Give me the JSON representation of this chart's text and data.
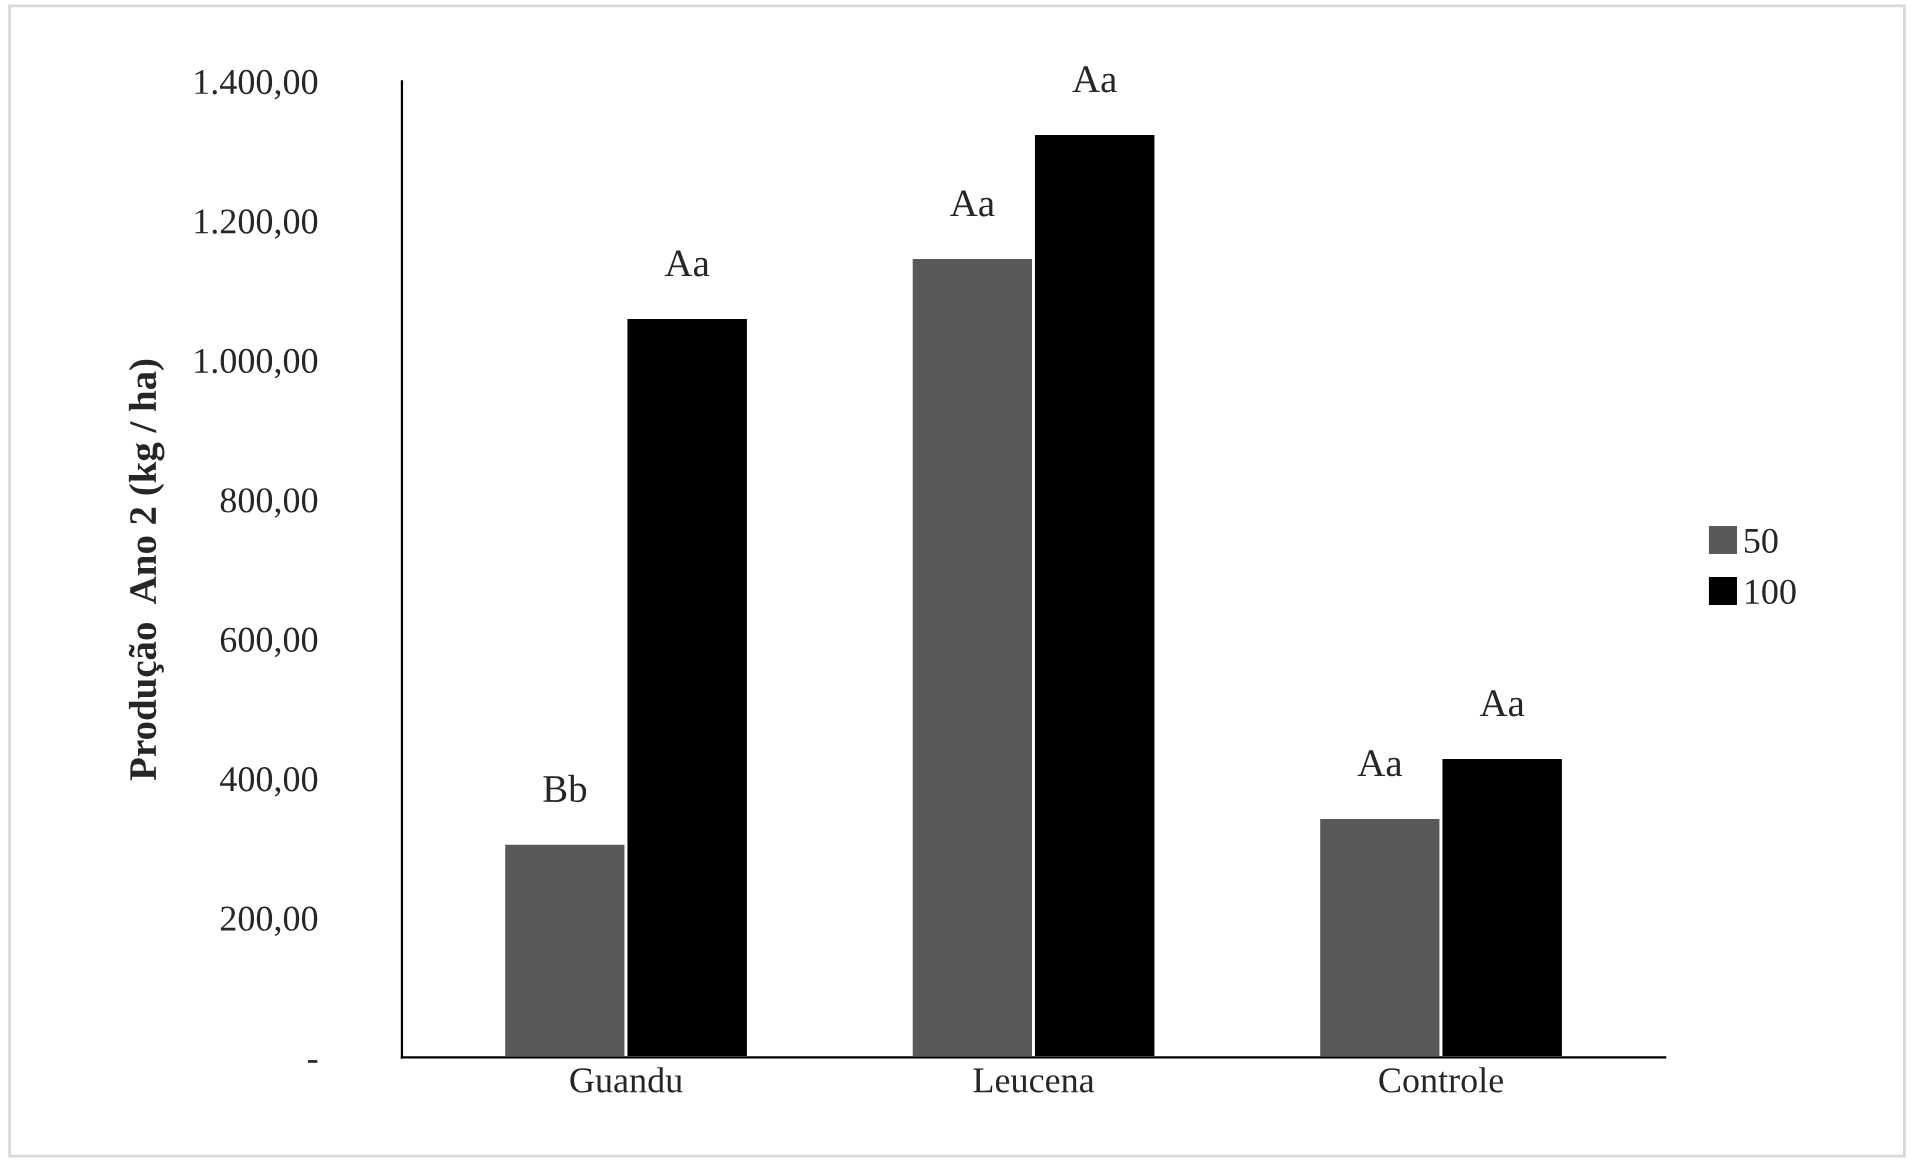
{
  "chart_data": {
    "type": "bar",
    "ylabel": "Produção  Ano 2 (kg / ha)",
    "categories": [
      "Guandu",
      "Leucena",
      "Controle"
    ],
    "series": [
      {
        "name": "50",
        "color": "#595959",
        "values": [
          307,
          1147,
          344
        ],
        "value_labels": [
          "Bb",
          "Aa",
          "Aa"
        ]
      },
      {
        "name": "100",
        "color": "#000000",
        "values": [
          1061,
          1325,
          430
        ],
        "value_labels": [
          "Aa",
          "Aa",
          "Aa"
        ]
      }
    ],
    "ylim": [
      0,
      1400
    ],
    "yticks": [
      {
        "value": 0,
        "label": "-"
      },
      {
        "value": 200,
        "label": "200,00"
      },
      {
        "value": 400,
        "label": "400,00"
      },
      {
        "value": 600,
        "label": "600,00"
      },
      {
        "value": 800,
        "label": "800,00"
      },
      {
        "value": 1000,
        "label": "1.000,00"
      },
      {
        "value": 1200,
        "label": "1.200,00"
      },
      {
        "value": 1400,
        "label": "1.400,00"
      }
    ],
    "grid": false,
    "legend": "right"
  }
}
